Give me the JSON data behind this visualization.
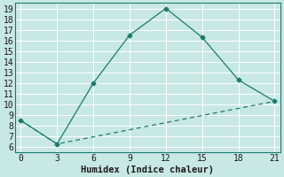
{
  "xlabel": "Humidex (Indice chaleur)",
  "ylabel": "",
  "line1_x": [
    0,
    3,
    6,
    9,
    12,
    15,
    18,
    21
  ],
  "line1_y": [
    8.5,
    6.3,
    12.0,
    16.5,
    19.0,
    16.3,
    12.3,
    10.3
  ],
  "line2_x": [
    0,
    3,
    21
  ],
  "line2_y": [
    8.5,
    6.3,
    10.3
  ],
  "color": "#1a7a6e",
  "background_color": "#c8e8e5",
  "grid_color": "#b0d8d4",
  "xlim": [
    -0.5,
    21.5
  ],
  "ylim": [
    5.5,
    19.5
  ],
  "xticks": [
    0,
    3,
    6,
    9,
    12,
    15,
    18,
    21
  ],
  "yticks": [
    6,
    7,
    8,
    9,
    10,
    11,
    12,
    13,
    14,
    15,
    16,
    17,
    18,
    19
  ],
  "xlabel_fontsize": 7.5,
  "tick_fontsize": 7
}
